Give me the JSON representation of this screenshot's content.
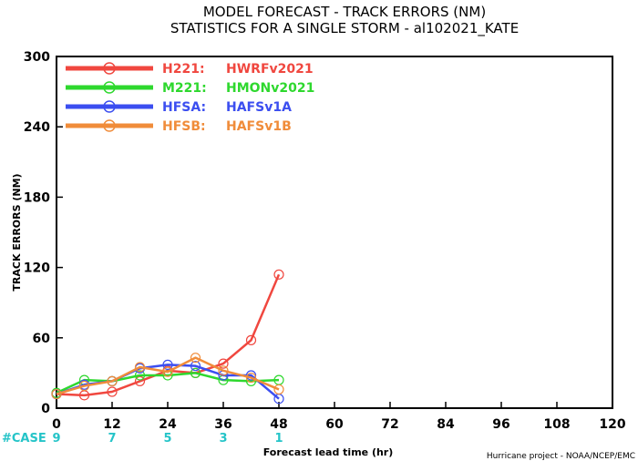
{
  "chart_data": {
    "type": "line",
    "title": "MODEL FORECAST - TRACK ERRORS (NM)",
    "subtitle": "STATISTICS FOR A SINGLE STORM - al102021_KATE",
    "xlabel": "Forecast lead time (hr)",
    "ylabel": "TRACK ERRORS (NM)",
    "xlim": [
      0,
      120
    ],
    "ylim": [
      0,
      300
    ],
    "xticks": [
      "0",
      "12",
      "24",
      "36",
      "48",
      "60",
      "72",
      "84",
      "96",
      "108",
      "120"
    ],
    "yticks": [
      "0",
      "60",
      "120",
      "180",
      "240",
      "300"
    ],
    "legend_position": "top-left",
    "series": [
      {
        "name": "H221:",
        "desc": "HWRFv2021",
        "color": "#f0473f",
        "x": [
          0,
          6,
          12,
          18,
          24,
          30,
          36,
          42,
          48
        ],
        "y": [
          12,
          11,
          14,
          23,
          32,
          30,
          38,
          58,
          114
        ]
      },
      {
        "name": "M221:",
        "desc": "HMONv2021",
        "color": "#2ed82e",
        "x": [
          0,
          6,
          12,
          18,
          24,
          30,
          36,
          42,
          48
        ],
        "y": [
          13,
          24,
          23,
          28,
          28,
          30,
          24,
          23,
          24
        ]
      },
      {
        "name": "HFSA:",
        "desc": "HAFSv1A",
        "color": "#3b4ef0",
        "x": [
          0,
          6,
          12,
          18,
          24,
          30,
          36,
          42,
          48
        ],
        "y": [
          12,
          20,
          23,
          34,
          37,
          36,
          28,
          28,
          8
        ]
      },
      {
        "name": "HFSB:",
        "desc": "HAFSv1B",
        "color": "#f08c3a",
        "x": [
          0,
          6,
          12,
          18,
          24,
          30,
          36,
          42,
          48
        ],
        "y": [
          12,
          19,
          23,
          35,
          31,
          43,
          32,
          26,
          16
        ]
      }
    ],
    "case_label": "#CASE",
    "case_counts": [
      {
        "x": 0,
        "n": "9"
      },
      {
        "x": 12,
        "n": "7"
      },
      {
        "x": 24,
        "n": "5"
      },
      {
        "x": 36,
        "n": "3"
      },
      {
        "x": 48,
        "n": "1"
      }
    ],
    "credit": "Hurricane project - NOAA/NCEP/EMC"
  }
}
